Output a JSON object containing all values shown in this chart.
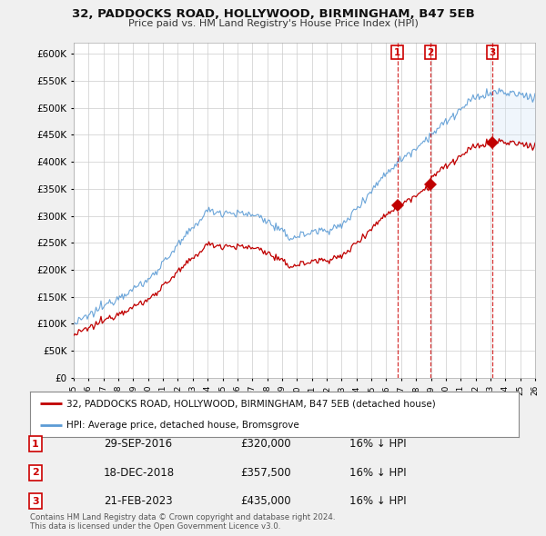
{
  "title": "32, PADDOCKS ROAD, HOLLYWOOD, BIRMINGHAM, B47 5EB",
  "subtitle": "Price paid vs. HM Land Registry's House Price Index (HPI)",
  "ylim": [
    0,
    620000
  ],
  "yticks": [
    0,
    50000,
    100000,
    150000,
    200000,
    250000,
    300000,
    350000,
    400000,
    450000,
    500000,
    550000,
    600000
  ],
  "ytick_labels": [
    "£0",
    "£50K",
    "£100K",
    "£150K",
    "£200K",
    "£250K",
    "£300K",
    "£350K",
    "£400K",
    "£450K",
    "£500K",
    "£550K",
    "£600K"
  ],
  "hpi_color": "#5b9bd5",
  "sale_color": "#c00000",
  "fill_color": "#d6e8f7",
  "sale_dates": [
    "29-SEP-2016",
    "18-DEC-2018",
    "21-FEB-2023"
  ],
  "sale_prices": [
    320000,
    357500,
    435000
  ],
  "sale_times": [
    2016.75,
    2018.96,
    2023.13
  ],
  "sale_labels": [
    "1",
    "2",
    "3"
  ],
  "legend_label1": "32, PADDOCKS ROAD, HOLLYWOOD, BIRMINGHAM, B47 5EB (detached house)",
  "legend_label2": "HPI: Average price, detached house, Bromsgrove",
  "footer1": "Contains HM Land Registry data © Crown copyright and database right 2024.",
  "footer2": "This data is licensed under the Open Government Licence v3.0.",
  "background_color": "#f0f0f0",
  "plot_bg_color": "#ffffff",
  "grid_color": "#cccccc",
  "xlim_start": 1995,
  "xlim_end": 2026
}
